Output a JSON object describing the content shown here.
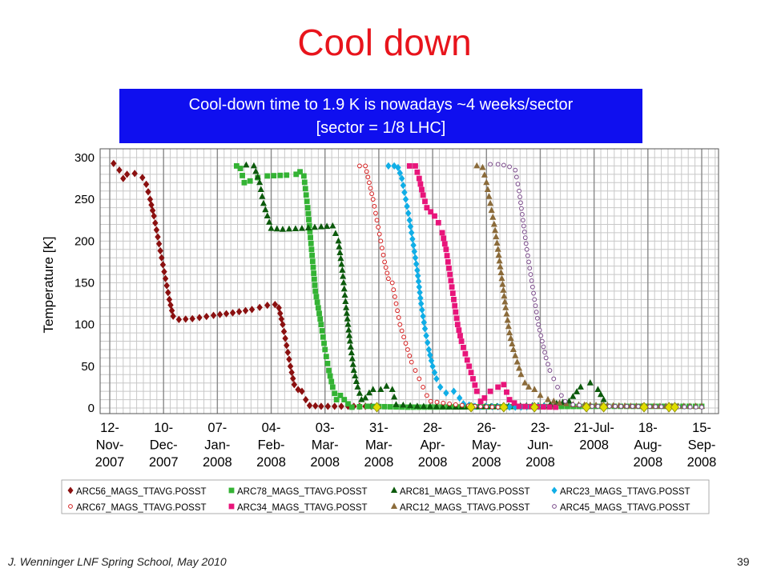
{
  "slide": {
    "title": "Cool down",
    "banner_line1": "Cool-down time to 1.9 K is nowadays ~4 weeks/sector",
    "banner_line2": "[sector = 1/8 LHC]",
    "footer_left": "J. Wenninger LNF Spring School, May 2010",
    "page_number": "39",
    "banner_color": "#0f0fef",
    "title_color": "#e8141c"
  },
  "chart_data": {
    "type": "scatter",
    "ylabel": "Temperature [K]",
    "xlabel": "",
    "ylim": [
      0,
      300
    ],
    "yticks": [
      0,
      50,
      100,
      150,
      200,
      250,
      300
    ],
    "xlim": [
      "2007-11-12",
      "2008-09-20"
    ],
    "xticks": [
      {
        "date": "2007-11-12",
        "label": [
          "12-",
          "Nov-",
          "2007"
        ]
      },
      {
        "date": "2007-12-10",
        "label": [
          "10-",
          "Dec-",
          "2007"
        ]
      },
      {
        "date": "2008-01-07",
        "label": [
          "07-",
          "Jan-",
          "2008"
        ]
      },
      {
        "date": "2008-02-04",
        "label": [
          "04-",
          "Feb-",
          "2008"
        ]
      },
      {
        "date": "2008-03-03",
        "label": [
          "03-",
          "Mar-",
          "2008"
        ]
      },
      {
        "date": "2008-03-31",
        "label": [
          "31-",
          "Mar-",
          "2008"
        ]
      },
      {
        "date": "2008-04-28",
        "label": [
          "28-",
          "Apr-",
          "2008"
        ]
      },
      {
        "date": "2008-05-26",
        "label": [
          "26-",
          "May-",
          "2008"
        ]
      },
      {
        "date": "2008-06-23",
        "label": [
          "23-",
          "Jun-",
          "2008"
        ]
      },
      {
        "date": "2008-07-21",
        "label": [
          "21-Jul-",
          "2008"
        ]
      },
      {
        "date": "2008-08-18",
        "label": [
          "18-",
          "Aug-",
          "2008"
        ]
      },
      {
        "date": "2008-09-15",
        "label": [
          "15-",
          "Sep-",
          "2008"
        ]
      }
    ],
    "grid": true,
    "legend_position": "bottom",
    "series": [
      {
        "name": "ARC56_MAGS_TTAVG.POSST",
        "color": "#8b1010",
        "marker": "diamond",
        "fill": true,
        "points": [
          [
            "2007-11-14",
            293
          ],
          [
            "2007-11-17",
            285
          ],
          [
            "2007-11-19",
            275
          ],
          [
            "2007-11-21",
            280
          ],
          [
            "2007-11-25",
            281
          ],
          [
            "2007-11-29",
            276
          ],
          [
            "2007-12-01",
            268
          ],
          [
            "2007-12-03",
            250
          ],
          [
            "2007-12-05",
            230
          ],
          [
            "2007-12-07",
            205
          ],
          [
            "2007-12-09",
            180
          ],
          [
            "2007-12-11",
            155
          ],
          [
            "2007-12-13",
            130
          ],
          [
            "2007-12-15",
            110
          ],
          [
            "2007-12-18",
            106
          ],
          [
            "2007-12-25",
            107
          ],
          [
            "2008-01-05",
            111
          ],
          [
            "2008-01-15",
            114
          ],
          [
            "2008-01-25",
            118
          ],
          [
            "2008-02-02",
            123
          ],
          [
            "2008-02-06",
            124
          ],
          [
            "2008-02-08",
            120
          ],
          [
            "2008-02-10",
            100
          ],
          [
            "2008-02-12",
            75
          ],
          [
            "2008-02-14",
            50
          ],
          [
            "2008-02-16",
            28
          ],
          [
            "2008-02-18",
            22
          ],
          [
            "2008-02-20",
            20
          ],
          [
            "2008-02-22",
            10
          ],
          [
            "2008-02-24",
            3
          ],
          [
            "2008-03-01",
            2
          ],
          [
            "2008-03-15",
            2
          ],
          [
            "2008-03-30",
            2
          ]
        ]
      },
      {
        "name": "ARC78_MAGS_TTAVG.POSST",
        "color": "#34b334",
        "marker": "square",
        "fill": true,
        "points": [
          [
            "2008-01-17",
            290
          ],
          [
            "2008-01-19",
            287
          ],
          [
            "2008-01-21",
            270
          ],
          [
            "2008-01-24",
            272
          ],
          [
            "2008-01-28",
            276
          ],
          [
            "2008-02-02",
            278
          ],
          [
            "2008-02-12",
            279
          ],
          [
            "2008-02-17",
            280
          ],
          [
            "2008-02-19",
            283
          ],
          [
            "2008-02-21",
            278
          ],
          [
            "2008-02-23",
            240
          ],
          [
            "2008-02-25",
            190
          ],
          [
            "2008-02-27",
            140
          ],
          [
            "2008-03-01",
            100
          ],
          [
            "2008-03-03",
            70
          ],
          [
            "2008-03-05",
            45
          ],
          [
            "2008-03-07",
            25
          ],
          [
            "2008-03-09",
            10
          ],
          [
            "2008-03-11",
            15
          ],
          [
            "2008-03-13",
            10
          ],
          [
            "2008-03-15",
            5
          ],
          [
            "2008-03-17",
            1
          ],
          [
            "2008-03-25",
            2
          ],
          [
            "2008-04-15",
            1
          ],
          [
            "2008-07-25",
            2
          ],
          [
            "2008-08-20",
            2
          ],
          [
            "2008-09-15",
            2
          ]
        ]
      },
      {
        "name": "ARC81_MAGS_TTAVG.POSST",
        "color": "#0c5a0c",
        "marker": "triangle",
        "fill": true,
        "points": [
          [
            "2008-01-22",
            291
          ],
          [
            "2008-01-26",
            290
          ],
          [
            "2008-01-29",
            270
          ],
          [
            "2008-01-31",
            245
          ],
          [
            "2008-02-02",
            230
          ],
          [
            "2008-02-04",
            215
          ],
          [
            "2008-02-10",
            214
          ],
          [
            "2008-02-20",
            215
          ],
          [
            "2008-03-01",
            217
          ],
          [
            "2008-03-07",
            218
          ],
          [
            "2008-03-10",
            200
          ],
          [
            "2008-03-12",
            165
          ],
          [
            "2008-03-14",
            120
          ],
          [
            "2008-03-16",
            80
          ],
          [
            "2008-03-18",
            45
          ],
          [
            "2008-03-20",
            25
          ],
          [
            "2008-03-22",
            10
          ],
          [
            "2008-03-24",
            12
          ],
          [
            "2008-03-26",
            18
          ],
          [
            "2008-03-28",
            22
          ],
          [
            "2008-04-01",
            22
          ],
          [
            "2008-04-04",
            26
          ],
          [
            "2008-04-07",
            22
          ],
          [
            "2008-04-09",
            4
          ],
          [
            "2008-04-20",
            2
          ],
          [
            "2008-05-10",
            1
          ],
          [
            "2008-06-25",
            3
          ],
          [
            "2008-07-08",
            8
          ],
          [
            "2008-07-14",
            25
          ],
          [
            "2008-07-19",
            30
          ],
          [
            "2008-07-23",
            22
          ],
          [
            "2008-07-26",
            10
          ],
          [
            "2008-07-28",
            3
          ]
        ]
      },
      {
        "name": "ARC23_MAGS_TTAVG.POSST",
        "color": "#11aee6",
        "marker": "diamond",
        "fill": true,
        "points": [
          [
            "2008-04-05",
            290
          ],
          [
            "2008-04-08",
            290
          ],
          [
            "2008-04-10",
            288
          ],
          [
            "2008-04-12",
            275
          ],
          [
            "2008-04-14",
            250
          ],
          [
            "2008-04-16",
            225
          ],
          [
            "2008-04-18",
            195
          ],
          [
            "2008-04-20",
            165
          ],
          [
            "2008-04-22",
            125
          ],
          [
            "2008-04-24",
            95
          ],
          [
            "2008-04-26",
            70
          ],
          [
            "2008-04-28",
            50
          ],
          [
            "2008-04-30",
            35
          ],
          [
            "2008-05-02",
            25
          ],
          [
            "2008-05-05",
            18
          ],
          [
            "2008-05-09",
            20
          ],
          [
            "2008-05-12",
            12
          ],
          [
            "2008-05-14",
            5
          ],
          [
            "2008-05-20",
            2
          ],
          [
            "2008-06-10",
            1
          ],
          [
            "2008-06-25",
            2
          ]
        ]
      },
      {
        "name": "ARC67_MAGS_TTAVG.POSST",
        "color": "#d41e1e",
        "marker": "circle",
        "fill": false,
        "points": [
          [
            "2008-03-21",
            290
          ],
          [
            "2008-03-24",
            290
          ],
          [
            "2008-03-26",
            270
          ],
          [
            "2008-03-28",
            250
          ],
          [
            "2008-03-30",
            225
          ],
          [
            "2008-04-01",
            200
          ],
          [
            "2008-04-03",
            175
          ],
          [
            "2008-04-05",
            155
          ],
          [
            "2008-04-07",
            150
          ],
          [
            "2008-04-09",
            125
          ],
          [
            "2008-04-11",
            100
          ],
          [
            "2008-04-13",
            85
          ],
          [
            "2008-04-15",
            70
          ],
          [
            "2008-04-17",
            55
          ],
          [
            "2008-04-19",
            45
          ],
          [
            "2008-04-21",
            35
          ],
          [
            "2008-04-23",
            25
          ],
          [
            "2008-04-25",
            15
          ],
          [
            "2008-04-27",
            8
          ],
          [
            "2008-05-10",
            4
          ],
          [
            "2008-05-20",
            2
          ],
          [
            "2008-06-01",
            1
          ]
        ]
      },
      {
        "name": "ARC34_MAGS_TTAVG.POSST",
        "color": "#e8157a",
        "marker": "square",
        "fill": true,
        "points": [
          [
            "2008-04-16",
            290
          ],
          [
            "2008-04-19",
            290
          ],
          [
            "2008-04-21",
            275
          ],
          [
            "2008-04-23",
            255
          ],
          [
            "2008-04-25",
            240
          ],
          [
            "2008-04-27",
            235
          ],
          [
            "2008-04-29",
            230
          ],
          [
            "2008-05-01",
            222
          ],
          [
            "2008-05-03",
            210
          ],
          [
            "2008-05-05",
            190
          ],
          [
            "2008-05-07",
            160
          ],
          [
            "2008-05-09",
            130
          ],
          [
            "2008-05-11",
            100
          ],
          [
            "2008-05-13",
            80
          ],
          [
            "2008-05-15",
            65
          ],
          [
            "2008-05-17",
            50
          ],
          [
            "2008-05-19",
            35
          ],
          [
            "2008-05-21",
            20
          ],
          [
            "2008-05-23",
            8
          ],
          [
            "2008-05-25",
            12
          ],
          [
            "2008-05-28",
            20
          ],
          [
            "2008-06-01",
            25
          ],
          [
            "2008-06-04",
            28
          ],
          [
            "2008-06-07",
            10
          ],
          [
            "2008-06-12",
            2
          ],
          [
            "2008-07-01",
            1
          ]
        ]
      },
      {
        "name": "ARC12_MAGS_TTAVG.POSST",
        "color": "#8b6b3a",
        "marker": "triangle",
        "fill": true,
        "points": [
          [
            "2008-05-21",
            290
          ],
          [
            "2008-05-24",
            288
          ],
          [
            "2008-05-26",
            270
          ],
          [
            "2008-05-28",
            245
          ],
          [
            "2008-05-30",
            220
          ],
          [
            "2008-06-01",
            190
          ],
          [
            "2008-06-03",
            155
          ],
          [
            "2008-06-05",
            120
          ],
          [
            "2008-06-07",
            90
          ],
          [
            "2008-06-09",
            70
          ],
          [
            "2008-06-11",
            55
          ],
          [
            "2008-06-13",
            40
          ],
          [
            "2008-06-15",
            30
          ],
          [
            "2008-06-17",
            25
          ],
          [
            "2008-06-20",
            22
          ],
          [
            "2008-06-23",
            15
          ],
          [
            "2008-06-27",
            10
          ],
          [
            "2008-07-03",
            6
          ],
          [
            "2008-07-10",
            4
          ],
          [
            "2008-07-25",
            3
          ],
          [
            "2008-08-15",
            2
          ],
          [
            "2008-09-15",
            2
          ]
        ]
      },
      {
        "name": "ARC45_MAGS_TTAVG.POSST",
        "color": "#7a4a8a",
        "marker": "circle",
        "fill": false,
        "points": [
          [
            "2008-05-28",
            292
          ],
          [
            "2008-06-01",
            292
          ],
          [
            "2008-06-04",
            291
          ],
          [
            "2008-06-07",
            289
          ],
          [
            "2008-06-10",
            285
          ],
          [
            "2008-06-12",
            260
          ],
          [
            "2008-06-14",
            225
          ],
          [
            "2008-06-16",
            190
          ],
          [
            "2008-06-18",
            160
          ],
          [
            "2008-06-20",
            130
          ],
          [
            "2008-06-22",
            100
          ],
          [
            "2008-06-24",
            80
          ],
          [
            "2008-06-26",
            60
          ],
          [
            "2008-06-28",
            45
          ],
          [
            "2008-06-30",
            35
          ],
          [
            "2008-07-02",
            25
          ],
          [
            "2008-07-04",
            15
          ],
          [
            "2008-07-06",
            8
          ],
          [
            "2008-07-10",
            4
          ],
          [
            "2008-07-20",
            2
          ],
          [
            "2008-08-10",
            2
          ],
          [
            "2008-09-15",
            1
          ]
        ]
      }
    ],
    "annotation_markers": {
      "color": "#e0dd00",
      "points": [
        [
          "2008-03-30",
          1
        ],
        [
          "2008-05-18",
          1
        ],
        [
          "2008-06-04",
          1
        ],
        [
          "2008-06-20",
          1
        ],
        [
          "2008-07-17",
          1
        ],
        [
          "2008-07-26",
          1
        ],
        [
          "2008-08-16",
          1
        ],
        [
          "2008-08-29",
          1
        ],
        [
          "2008-09-01",
          1
        ]
      ]
    }
  }
}
